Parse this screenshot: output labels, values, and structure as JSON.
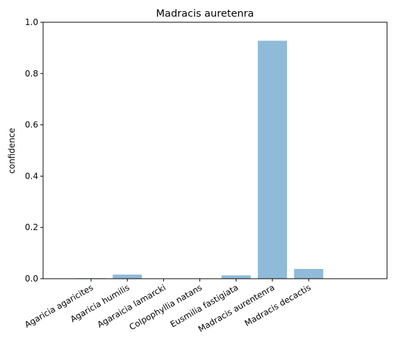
{
  "chart_data": {
    "type": "bar",
    "title": "Madracis auretenra",
    "xlabel": "",
    "ylabel": "confidence",
    "ylim": [
      0,
      1.0
    ],
    "yticks": [
      "0.0",
      "0.2",
      "0.4",
      "0.6",
      "0.8",
      "1.0"
    ],
    "categories": [
      "Agaricia agaricites",
      "Agaricia humilis",
      "Agaraicia lamarcki",
      "Colpophyllia natans",
      "Eusmilia fastigiata",
      "Madracis aurentenra",
      "Madracis decactis"
    ],
    "values": [
      0.002,
      0.016,
      0.0005,
      0.0005,
      0.013,
      0.928,
      0.038
    ],
    "bar_color": "#8fbbd9",
    "grid": false,
    "legend": "none"
  }
}
